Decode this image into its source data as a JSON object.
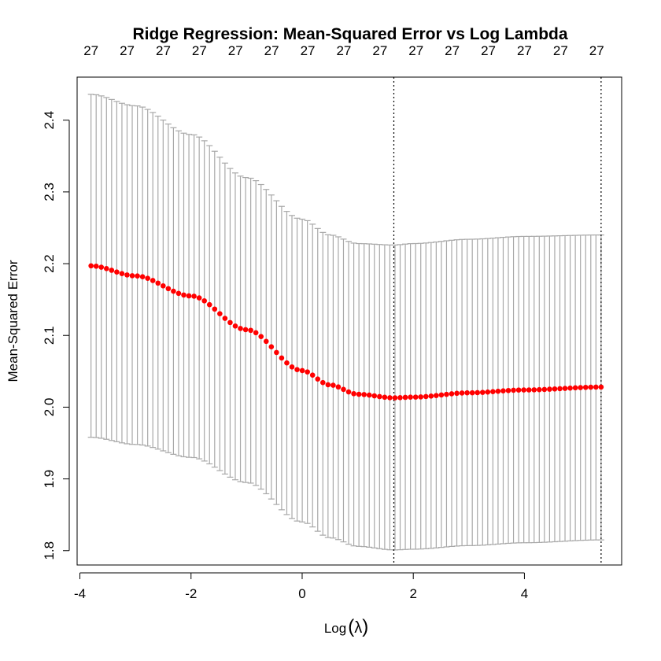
{
  "chart_data": {
    "type": "scatter",
    "title": "Ridge Regression: Mean-Squared Error vs Log Lambda",
    "xlabel": "Log",
    "xlabel_symbol": "λ",
    "ylabel": "Mean-Squared Error",
    "xlim": [
      -4.05,
      5.75
    ],
    "ylim": [
      1.78,
      2.46
    ],
    "x_ticks": [
      -4,
      -2,
      0,
      2,
      4
    ],
    "x_tick_labels": [
      "-4",
      "-2",
      "0",
      "2",
      "4"
    ],
    "y_ticks": [
      1.8,
      1.9,
      2.0,
      2.1,
      2.2,
      2.3,
      2.4
    ],
    "y_tick_labels": [
      "1.8",
      "1.9",
      "2.0",
      "2.1",
      "2.2",
      "2.3",
      "2.4"
    ],
    "top_axis": {
      "ticks": [
        -3.8,
        -3.15,
        -2.5,
        -1.85,
        -1.2,
        -0.55,
        0.1,
        0.75,
        1.4,
        2.05,
        2.7,
        3.35,
        4.0,
        4.65,
        5.3
      ],
      "labels": [
        "27",
        "27",
        "27",
        "27",
        "27",
        "27",
        "27",
        "27",
        "27",
        "27",
        "27",
        "27",
        "27",
        "27",
        "27"
      ]
    },
    "vlines": [
      1.65,
      5.38
    ],
    "series": [
      {
        "x_start": -3.8,
        "x_end": 5.38,
        "n_points": 100,
        "mean_anchors": [
          [
            -3.8,
            2.197
          ],
          [
            -3.0,
            2.183
          ],
          [
            -2.0,
            2.155
          ],
          [
            -1.0,
            2.108
          ],
          [
            0.0,
            2.051
          ],
          [
            0.5,
            2.031
          ],
          [
            1.0,
            2.018
          ],
          [
            1.65,
            2.013
          ],
          [
            2.0,
            2.014
          ],
          [
            3.0,
            2.02
          ],
          [
            4.0,
            2.024
          ],
          [
            5.38,
            2.028
          ]
        ],
        "upper_anchors": [
          [
            -3.8,
            2.436
          ],
          [
            -3.0,
            2.42
          ],
          [
            -2.0,
            2.38
          ],
          [
            -1.0,
            2.32
          ],
          [
            0.0,
            2.262
          ],
          [
            0.5,
            2.24
          ],
          [
            1.0,
            2.228
          ],
          [
            1.65,
            2.226
          ],
          [
            2.0,
            2.228
          ],
          [
            3.0,
            2.234
          ],
          [
            4.0,
            2.238
          ],
          [
            5.38,
            2.24
          ]
        ],
        "lower_anchors": [
          [
            -3.8,
            1.958
          ],
          [
            -3.0,
            1.948
          ],
          [
            -2.0,
            1.93
          ],
          [
            -1.0,
            1.895
          ],
          [
            0.0,
            1.84
          ],
          [
            0.5,
            1.818
          ],
          [
            1.0,
            1.806
          ],
          [
            1.65,
            1.801
          ],
          [
            2.0,
            1.802
          ],
          [
            3.0,
            1.807
          ],
          [
            4.0,
            1.811
          ],
          [
            5.38,
            1.815
          ]
        ],
        "point_color": "#ff0000",
        "errorbar_color": "#a8a8a8"
      }
    ]
  }
}
